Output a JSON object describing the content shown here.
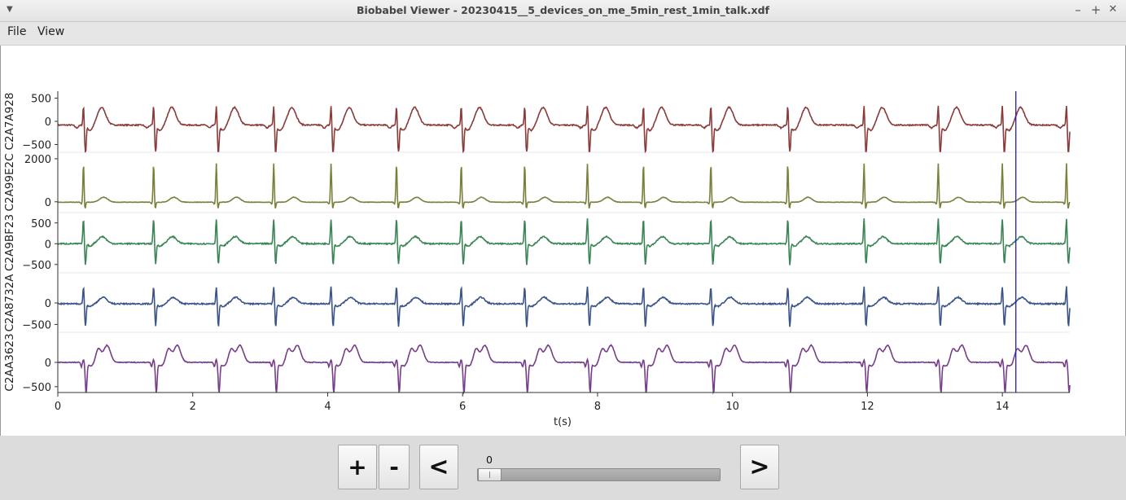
{
  "window": {
    "title": "Biobabel Viewer - 20230415__5_devices_on_me_5min_rest_1min_talk.xdf",
    "minimize": "–",
    "maximize": "+",
    "close": "✕",
    "menu_arrow": "▼"
  },
  "menu": {
    "file": "File",
    "view": "View"
  },
  "chart_data": {
    "type": "line",
    "xlabel": "t(s)",
    "xlim": [
      0,
      15
    ],
    "x_ticks": [
      "0",
      "2",
      "4",
      "6",
      "8",
      "10",
      "12",
      "14"
    ],
    "cursor_x": 14.2,
    "beats": [
      0.38,
      1.42,
      2.35,
      3.2,
      4.05,
      5.02,
      5.98,
      6.92,
      7.85,
      8.68,
      9.68,
      10.82,
      11.95,
      13.05,
      14.0,
      14.95
    ],
    "series": [
      {
        "name": "C2A7A928",
        "color": "#8b3a3a",
        "yticks": [
          "500",
          "0",
          "−500"
        ],
        "yvals": [
          500,
          0,
          -500
        ],
        "ylim": [
          -650,
          650
        ]
      },
      {
        "name": "C2A99E2C",
        "color": "#7a7f3a",
        "yticks": [
          "2000",
          "0"
        ],
        "yvals": [
          2000,
          0
        ],
        "ylim": [
          -500,
          2300
        ]
      },
      {
        "name": "C2A9BF23",
        "color": "#3a8555",
        "yticks": [
          "500",
          "0",
          "−500"
        ],
        "yvals": [
          500,
          0,
          -500
        ],
        "ylim": [
          -700,
          750
        ]
      },
      {
        "name": "C2A8732A",
        "color": "#3b5488",
        "yticks": [
          "0",
          "−500"
        ],
        "yvals": [
          0,
          -500
        ],
        "ylim": [
          -700,
          700
        ]
      },
      {
        "name": "C2AA3623",
        "color": "#763e88",
        "yticks": [
          "0",
          "−500"
        ],
        "yvals": [
          0,
          -500
        ],
        "ylim": [
          -620,
          620
        ]
      }
    ]
  },
  "controls": {
    "zoom_in": "+",
    "zoom_out": "-",
    "prev": "<",
    "next": ">",
    "slider_value": "0"
  }
}
